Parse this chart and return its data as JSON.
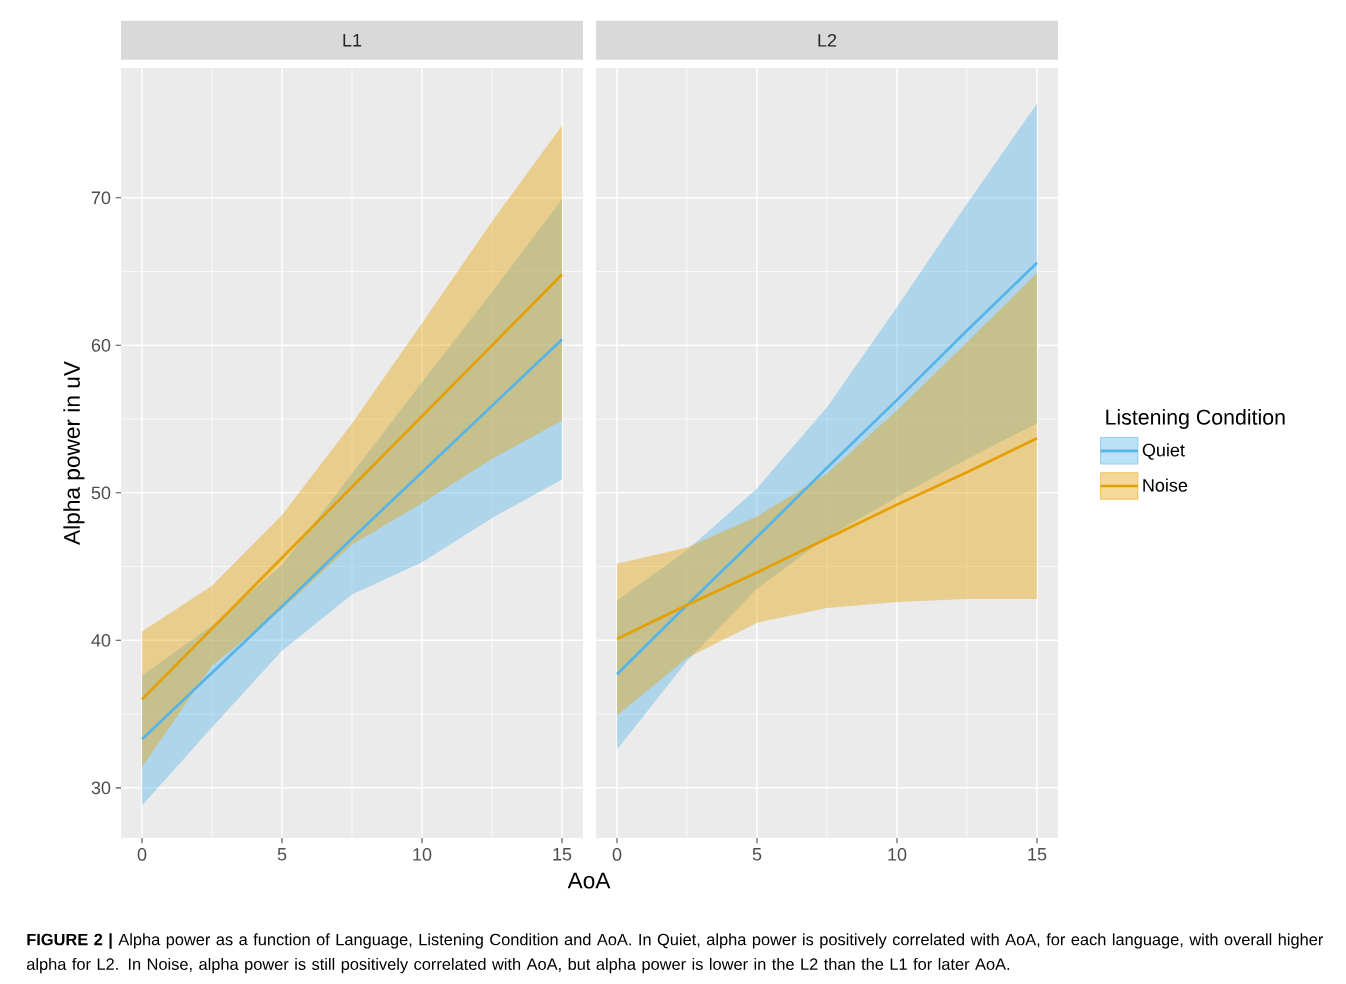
{
  "chart_data": [
    {
      "type": "line",
      "title": "L1",
      "xlabel": "AoA",
      "ylabel": "Alpha power in uV",
      "xlim": [
        -0.75,
        15.75
      ],
      "ylim": [
        26.6,
        78.8
      ],
      "xticks": [
        0,
        5,
        10,
        15
      ],
      "yticks": [
        30,
        40,
        50,
        60,
        70
      ],
      "grid": true,
      "marker": "none",
      "legend": false,
      "x": [
        0,
        2.5,
        5,
        7.5,
        10,
        12.5,
        15
      ],
      "series": [
        {
          "color": "#56b4e9",
          "values": [
            33.3,
            37.8,
            42.3,
            46.9,
            51.4,
            55.9,
            60.4
          ],
          "lower": [
            28.8,
            34.1,
            39.3,
            43.1,
            45.3,
            48.3,
            50.9
          ],
          "upper": [
            37.6,
            41.0,
            45.1,
            51.3,
            57.5,
            63.6,
            69.9
          ]
        },
        {
          "color": "#e69f00",
          "values": [
            36.0,
            40.8,
            45.6,
            50.4,
            55.2,
            60.0,
            64.8
          ],
          "lower": [
            31.4,
            38.3,
            42.1,
            46.5,
            49.3,
            52.3,
            54.9
          ],
          "upper": [
            40.6,
            43.7,
            48.5,
            54.7,
            61.5,
            68.4,
            74.9
          ]
        }
      ],
      "annotations": [
        "**FIGURE 2 |** Alpha power as a function of Language, Listening Condition and AoA. In Quiet, alpha power is positively correlated with AoA, for each language, with overall higher alpha for L2. In Noise, alpha power is still positively correlated with AoA, but alpha power is lower in the L2 than the L1 for later AoA."
      ]
    },
    {
      "type": "line",
      "title": "L2",
      "xlim": [
        -0.75,
        15.75
      ],
      "ylim": [
        26.6,
        78.8
      ],
      "xticks": [
        0,
        5,
        10,
        15
      ],
      "yticks": [
        30,
        40,
        50,
        60,
        70
      ],
      "tick_labels": "x",
      "grid": true,
      "marker": "none",
      "legend": "right",
      "legend_title": "Listening Condition",
      "x": [
        0,
        2.5,
        5,
        7.5,
        10,
        12.5,
        15
      ],
      "series": [
        {
          "name": "Quiet",
          "color": "#56b4e9",
          "values": [
            37.7,
            42.4,
            47.0,
            51.7,
            56.3,
            61.0,
            65.6
          ],
          "lower": [
            32.6,
            38.6,
            43.5,
            47.0,
            49.7,
            52.3,
            54.7
          ],
          "upper": [
            42.7,
            46.1,
            50.3,
            55.8,
            62.6,
            69.6,
            76.4
          ]
        },
        {
          "name": "Noise",
          "color": "#e69f00",
          "values": [
            40.1,
            42.4,
            44.6,
            46.9,
            49.2,
            51.4,
            53.7
          ],
          "lower": [
            34.9,
            38.8,
            41.2,
            42.2,
            42.6,
            42.8,
            42.8
          ],
          "upper": [
            45.2,
            46.3,
            48.4,
            51.3,
            55.6,
            60.2,
            64.9
          ]
        }
      ]
    }
  ]
}
